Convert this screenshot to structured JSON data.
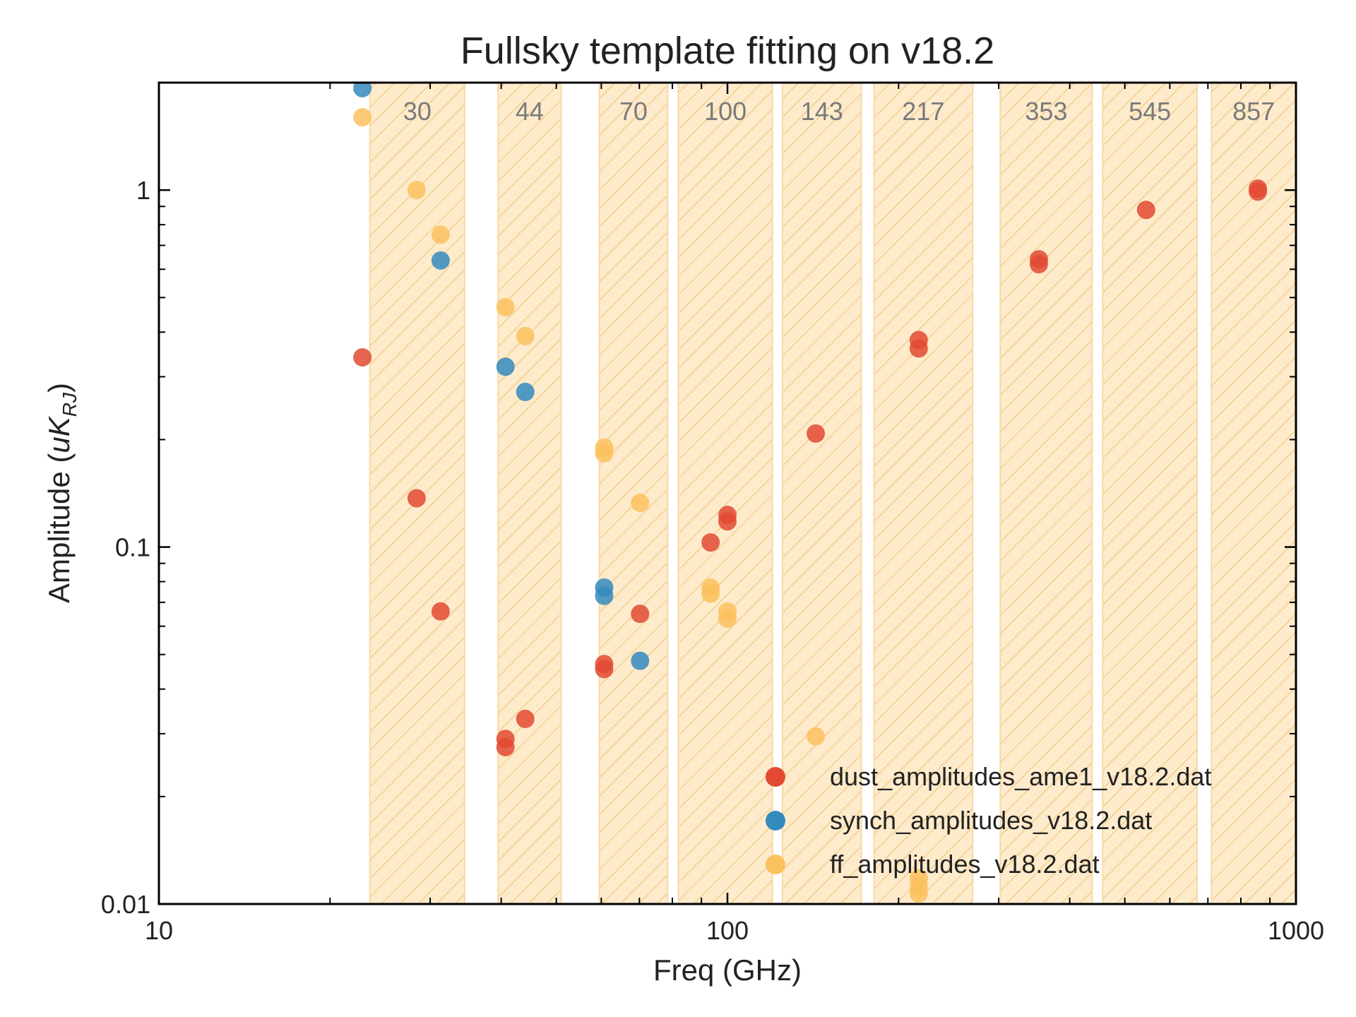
{
  "chart_data": {
    "type": "scatter",
    "title": "Fullsky template fitting on v18.2",
    "xlabel": "Freq (GHz)",
    "ylabel": {
      "main": "Amplitude (",
      "unit": "uK",
      "sub": "RJ",
      "close": ")"
    },
    "xscale": "log",
    "yscale": "log",
    "xlim": [
      10,
      1000
    ],
    "ylim": [
      0.01,
      2.0
    ],
    "x_ticks": [
      {
        "value": 10,
        "label": "10"
      },
      {
        "value": 100,
        "label": "100"
      },
      {
        "value": 1000,
        "label": "1000"
      }
    ],
    "y_ticks": [
      {
        "value": 0.01,
        "label": "0.01"
      },
      {
        "value": 0.1,
        "label": "0.1"
      },
      {
        "value": 1,
        "label": "1"
      }
    ],
    "grid": false,
    "legend_position": "bottom-right",
    "bands": [
      {
        "label": "30",
        "range": [
          23.5,
          34.5
        ]
      },
      {
        "label": "44",
        "range": [
          39.5,
          51.0
        ]
      },
      {
        "label": "70",
        "range": [
          59.5,
          78.5
        ]
      },
      {
        "label": "100",
        "range": [
          82.0,
          120.0
        ]
      },
      {
        "label": "143",
        "range": [
          125.0,
          172.0
        ]
      },
      {
        "label": "217",
        "range": [
          181.0,
          270.0
        ]
      },
      {
        "label": "353",
        "range": [
          302.0,
          438.0
        ]
      },
      {
        "label": "545",
        "range": [
          457.0,
          670.0
        ]
      },
      {
        "label": "857",
        "range": [
          710.0,
          1000.0
        ]
      }
    ],
    "series": [
      {
        "name": "dust_amplitudes_ame1_v18.2.dat",
        "color": "#e24a33",
        "points": [
          {
            "x": 22.8,
            "y": 0.34
          },
          {
            "x": 28.4,
            "y": 0.137
          },
          {
            "x": 31.3,
            "y": 0.066
          },
          {
            "x": 40.7,
            "y": 0.029
          },
          {
            "x": 40.7,
            "y": 0.0275
          },
          {
            "x": 44.1,
            "y": 0.033
          },
          {
            "x": 60.7,
            "y": 0.047
          },
          {
            "x": 60.7,
            "y": 0.0455
          },
          {
            "x": 70.2,
            "y": 0.065
          },
          {
            "x": 93.4,
            "y": 0.103
          },
          {
            "x": 100.0,
            "y": 0.123
          },
          {
            "x": 100.0,
            "y": 0.118
          },
          {
            "x": 143.0,
            "y": 0.208
          },
          {
            "x": 217.0,
            "y": 0.38
          },
          {
            "x": 217.0,
            "y": 0.36
          },
          {
            "x": 353.0,
            "y": 0.64
          },
          {
            "x": 353.0,
            "y": 0.62
          },
          {
            "x": 545.0,
            "y": 0.88
          },
          {
            "x": 857.0,
            "y": 1.01
          },
          {
            "x": 857.0,
            "y": 0.99
          }
        ]
      },
      {
        "name": "synch_amplitudes_v18.2.dat",
        "color": "#348abd",
        "points": [
          {
            "x": 22.8,
            "y": 1.93
          },
          {
            "x": 31.3,
            "y": 0.635
          },
          {
            "x": 40.7,
            "y": 0.32
          },
          {
            "x": 44.1,
            "y": 0.272
          },
          {
            "x": 60.7,
            "y": 0.077
          },
          {
            "x": 60.7,
            "y": 0.073
          },
          {
            "x": 70.2,
            "y": 0.048
          }
        ]
      },
      {
        "name": "ff_amplitudes_v18.2.dat",
        "color": "#fbc15e",
        "points": [
          {
            "x": 22.8,
            "y": 1.6
          },
          {
            "x": 28.4,
            "y": 1.0
          },
          {
            "x": 31.3,
            "y": 0.75
          },
          {
            "x": 40.7,
            "y": 0.47
          },
          {
            "x": 44.1,
            "y": 0.39
          },
          {
            "x": 60.7,
            "y": 0.19
          },
          {
            "x": 60.7,
            "y": 0.183
          },
          {
            "x": 70.2,
            "y": 0.133
          },
          {
            "x": 93.4,
            "y": 0.077
          },
          {
            "x": 93.4,
            "y": 0.074
          },
          {
            "x": 100.0,
            "y": 0.066
          },
          {
            "x": 100.0,
            "y": 0.063
          },
          {
            "x": 143.0,
            "y": 0.0295
          },
          {
            "x": 217.0,
            "y": 0.0118
          },
          {
            "x": 217.0,
            "y": 0.0112
          },
          {
            "x": 217.0,
            "y": 0.0107
          }
        ]
      }
    ]
  }
}
